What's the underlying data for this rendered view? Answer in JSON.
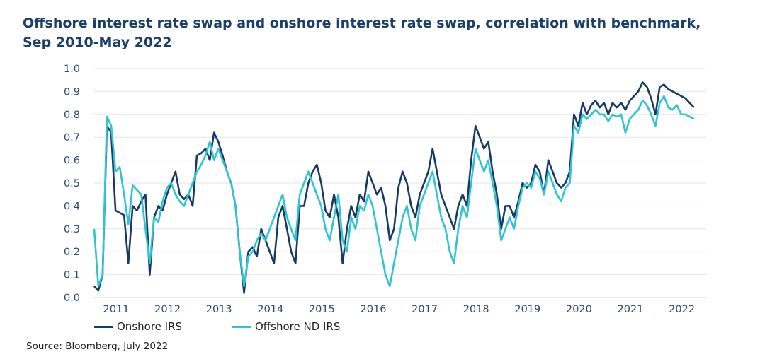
{
  "title": "Offshore interest rate swap and onshore interest rate swap, correlation with benchmark, Sep 2010-May 2022",
  "source": "Source: Bloomberg, July 2022",
  "colors": {
    "onshore": "#173a64",
    "offshore": "#2ec4d0",
    "grid": "#e6e6e6",
    "title": "#1b3f6b"
  },
  "chart_data": {
    "type": "line",
    "title": "Offshore interest rate swap and onshore interest rate swap, correlation with benchmark, Sep 2010-May 2022",
    "xlabel": "",
    "ylabel": "",
    "ylim": [
      0,
      1.0
    ],
    "yticks": [
      "0.0",
      "0.1",
      "0.2",
      "0.3",
      "0.4",
      "0.5",
      "0.6",
      "0.7",
      "0.8",
      "0.9",
      "1.0"
    ],
    "xticks": [
      "2011",
      "2012",
      "2013",
      "2014",
      "2015",
      "2016",
      "2017",
      "2018",
      "2019",
      "2020",
      "2021",
      "2022"
    ],
    "grid": true,
    "legend_position": "bottom-left",
    "x_start": "2010-09",
    "x_frequency": "monthly (approximate)",
    "series": [
      {
        "name": "Onshore IRS",
        "values": [
          0.05,
          0.03,
          0.1,
          0.75,
          0.72,
          0.38,
          0.37,
          0.36,
          0.15,
          0.4,
          0.38,
          0.42,
          0.45,
          0.1,
          0.35,
          0.4,
          0.38,
          0.45,
          0.5,
          0.55,
          0.45,
          0.43,
          0.45,
          0.4,
          0.62,
          0.63,
          0.65,
          0.6,
          0.72,
          0.68,
          0.62,
          0.55,
          0.5,
          0.4,
          0.2,
          0.02,
          0.2,
          0.22,
          0.18,
          0.3,
          0.25,
          0.2,
          0.15,
          0.35,
          0.4,
          0.3,
          0.2,
          0.15,
          0.4,
          0.4,
          0.5,
          0.55,
          0.58,
          0.5,
          0.38,
          0.35,
          0.45,
          0.35,
          0.15,
          0.3,
          0.4,
          0.35,
          0.45,
          0.42,
          0.55,
          0.5,
          0.45,
          0.48,
          0.4,
          0.25,
          0.3,
          0.48,
          0.55,
          0.5,
          0.4,
          0.35,
          0.45,
          0.5,
          0.55,
          0.65,
          0.55,
          0.45,
          0.4,
          0.35,
          0.3,
          0.4,
          0.45,
          0.4,
          0.6,
          0.75,
          0.7,
          0.65,
          0.68,
          0.55,
          0.45,
          0.3,
          0.4,
          0.4,
          0.35,
          0.42,
          0.5,
          0.48,
          0.5,
          0.58,
          0.55,
          0.45,
          0.6,
          0.55,
          0.5,
          0.48,
          0.5,
          0.55,
          0.8,
          0.75,
          0.85,
          0.8,
          0.84,
          0.86,
          0.83,
          0.85,
          0.8,
          0.85,
          0.83,
          0.85,
          0.82,
          0.86,
          0.88,
          0.9,
          0.94,
          0.92,
          0.87,
          0.8,
          0.92,
          0.93,
          0.91,
          0.9,
          0.89,
          0.88,
          0.87,
          0.85,
          0.83
        ]
      },
      {
        "name": "Offshore ND IRS",
        "values": [
          0.3,
          0.05,
          0.1,
          0.79,
          0.75,
          0.55,
          0.57,
          0.45,
          0.32,
          0.49,
          0.47,
          0.45,
          0.3,
          0.15,
          0.35,
          0.33,
          0.42,
          0.48,
          0.5,
          0.45,
          0.42,
          0.4,
          0.45,
          0.5,
          0.55,
          0.58,
          0.62,
          0.68,
          0.6,
          0.65,
          0.6,
          0.55,
          0.5,
          0.4,
          0.2,
          0.05,
          0.18,
          0.2,
          0.25,
          0.28,
          0.25,
          0.3,
          0.35,
          0.4,
          0.45,
          0.35,
          0.3,
          0.25,
          0.45,
          0.5,
          0.55,
          0.5,
          0.45,
          0.4,
          0.3,
          0.25,
          0.35,
          0.45,
          0.25,
          0.2,
          0.35,
          0.3,
          0.4,
          0.38,
          0.45,
          0.4,
          0.3,
          0.2,
          0.1,
          0.05,
          0.15,
          0.25,
          0.35,
          0.4,
          0.3,
          0.25,
          0.4,
          0.45,
          0.5,
          0.55,
          0.45,
          0.35,
          0.3,
          0.2,
          0.15,
          0.3,
          0.4,
          0.35,
          0.5,
          0.65,
          0.6,
          0.55,
          0.6,
          0.5,
          0.4,
          0.25,
          0.3,
          0.35,
          0.3,
          0.4,
          0.48,
          0.5,
          0.48,
          0.55,
          0.52,
          0.45,
          0.55,
          0.5,
          0.45,
          0.42,
          0.48,
          0.5,
          0.75,
          0.72,
          0.8,
          0.78,
          0.8,
          0.82,
          0.8,
          0.8,
          0.77,
          0.8,
          0.79,
          0.8,
          0.72,
          0.78,
          0.8,
          0.82,
          0.86,
          0.84,
          0.8,
          0.75,
          0.85,
          0.88,
          0.83,
          0.82,
          0.84,
          0.8,
          0.8,
          0.79,
          0.78
        ]
      }
    ]
  }
}
